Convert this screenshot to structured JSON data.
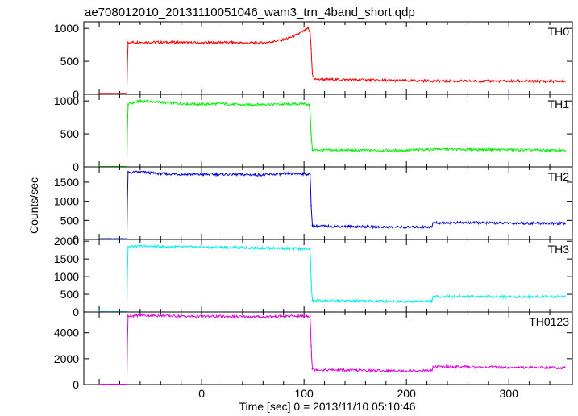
{
  "chart_data": {
    "type": "line",
    "title": "ae708012010_20131110051046_wam3_trn_4band_short.qdp",
    "xlabel": "Time [sec] 0 = 2013/11/10 05:10:46",
    "ylabel": "Counts/sec",
    "xlim": [
      -115,
      362
    ],
    "x_ticks": [
      0,
      100,
      200,
      300
    ],
    "x_tick_labels": [
      "0",
      "100",
      "200",
      "300"
    ],
    "grid": false,
    "panels": [
      {
        "name": "TH0",
        "color": "#ff0000",
        "ylim": [
          0,
          1100
        ],
        "y_ticks": [
          0,
          500,
          1000
        ],
        "y_tick_labels": [
          "0",
          "500",
          "1000"
        ],
        "series": {
          "name": "TH0",
          "x": [
            -100,
            -73,
            -72,
            -60,
            -40,
            -20,
            0,
            20,
            40,
            60,
            70,
            80,
            90,
            95,
            100,
            104,
            106,
            107,
            108,
            110,
            120,
            150,
            200,
            250,
            300,
            355
          ],
          "y": [
            15,
            15,
            790,
            790,
            790,
            785,
            780,
            790,
            780,
            780,
            800,
            830,
            880,
            920,
            960,
            1000,
            920,
            700,
            320,
            230,
            225,
            220,
            205,
            200,
            200,
            195
          ]
        }
      },
      {
        "name": "TH1",
        "color": "#00ee00",
        "ylim": [
          0,
          1100
        ],
        "y_ticks": [
          0,
          500,
          1000
        ],
        "y_tick_labels": [
          "0",
          "500",
          "1000"
        ],
        "series": {
          "name": "TH1",
          "x": [
            -100,
            -73,
            -72,
            -60,
            -40,
            -20,
            0,
            20,
            40,
            60,
            80,
            100,
            105,
            106,
            107,
            108,
            110,
            150,
            200,
            230,
            260,
            300,
            355
          ],
          "y": [
            5,
            5,
            950,
            1000,
            980,
            960,
            950,
            960,
            940,
            950,
            950,
            960,
            940,
            800,
            500,
            260,
            255,
            250,
            250,
            270,
            265,
            260,
            245
          ]
        }
      },
      {
        "name": "TH2",
        "color": "#0000dd",
        "ylim": [
          0,
          1900
        ],
        "y_ticks": [
          0,
          500,
          1000,
          1500
        ],
        "y_tick_labels": [
          "0",
          "500",
          "1000",
          "1500"
        ],
        "series": {
          "name": "TH2",
          "x": [
            -100,
            -73,
            -72,
            -60,
            -40,
            -20,
            0,
            20,
            40,
            60,
            80,
            100,
            106,
            107,
            108,
            110,
            150,
            200,
            225,
            226,
            260,
            300,
            355
          ],
          "y": [
            20,
            20,
            1750,
            1770,
            1720,
            1710,
            1700,
            1710,
            1700,
            1690,
            1720,
            1720,
            1700,
            900,
            370,
            350,
            340,
            320,
            330,
            440,
            440,
            430,
            420
          ]
        }
      },
      {
        "name": "TH3",
        "color": "#00eeee",
        "ylim": [
          0,
          2050
        ],
        "y_ticks": [
          0,
          500,
          1000,
          1500,
          2000
        ],
        "y_tick_labels": [
          "0",
          "500",
          "1000",
          "1500",
          "2000"
        ],
        "series": {
          "name": "TH3",
          "x": [
            -100,
            -73,
            -72,
            -60,
            -40,
            -20,
            0,
            20,
            40,
            60,
            80,
            100,
            106,
            107,
            108,
            110,
            150,
            200,
            225,
            226,
            260,
            300,
            355
          ],
          "y": [
            10,
            10,
            1850,
            1860,
            1850,
            1840,
            1830,
            1830,
            1820,
            1810,
            1800,
            1790,
            1780,
            900,
            330,
            320,
            310,
            300,
            310,
            430,
            440,
            430,
            440
          ]
        }
      },
      {
        "name": "TH0123",
        "color": "#dd00dd",
        "ylim": [
          0,
          5600
        ],
        "y_ticks": [
          0,
          2000,
          4000
        ],
        "y_tick_labels": [
          "0",
          "2000",
          "4000"
        ],
        "series": {
          "name": "TH0123",
          "x": [
            -100,
            -73,
            -72,
            -60,
            -40,
            -20,
            0,
            20,
            40,
            60,
            80,
            100,
            106,
            107,
            108,
            110,
            150,
            200,
            225,
            226,
            260,
            300,
            355
          ],
          "y": [
            30,
            30,
            5300,
            5350,
            5320,
            5280,
            5250,
            5260,
            5240,
            5230,
            5270,
            5300,
            5280,
            3000,
            1200,
            1150,
            1100,
            1050,
            1080,
            1380,
            1360,
            1330,
            1300
          ]
        }
      }
    ]
  }
}
